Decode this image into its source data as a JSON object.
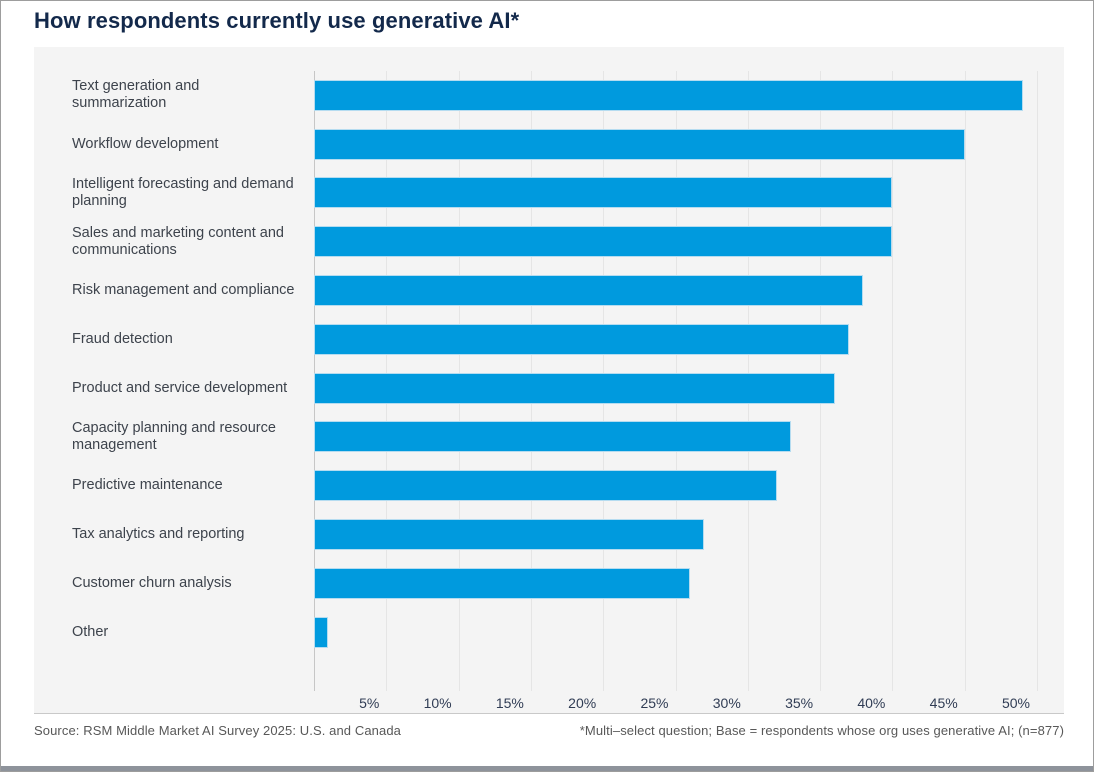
{
  "chart_data": {
    "type": "bar",
    "orientation": "horizontal",
    "title": "How respondents currently use generative AI*",
    "categories": [
      "Text generation and summarization",
      "Workflow development",
      "Intelligent forecasting and demand planning",
      "Sales and marketing content and communications",
      "Risk management and compliance",
      "Fraud detection",
      "Product and service development",
      "Capacity planning and resource management",
      "Predictive maintenance",
      "Tax analytics and reporting",
      "Customer churn analysis",
      "Other"
    ],
    "values": [
      49,
      45,
      40,
      40,
      38,
      37,
      36,
      33,
      32,
      27,
      26,
      1
    ],
    "value_unit": "%",
    "xlim": [
      0,
      50
    ],
    "xtick_labels": [
      "5%",
      "10%",
      "15%",
      "20%",
      "25%",
      "30%",
      "35%",
      "40%",
      "45%",
      "50%"
    ],
    "grid": "vertical",
    "legend": "none",
    "colors": {
      "bar": "#009ade",
      "bar_border": "#b5dcf0",
      "panel_background": "#f4f4f4",
      "gridline": "#e5e5e5",
      "title": "#13294b",
      "label_text": "#3d434c",
      "tick_text": "#303c54"
    }
  },
  "footer": {
    "source": "Source: RSM Middle Market AI Survey 2025: U.S. and Canada",
    "footnote": "*Multi–select question; Base = respondents whose org uses generative AI; (n=877)"
  }
}
